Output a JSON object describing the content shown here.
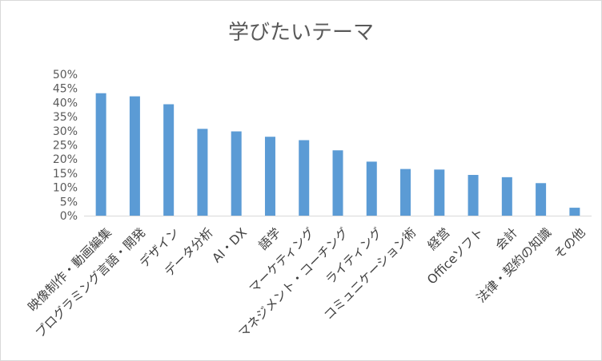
{
  "chart_data": {
    "type": "bar",
    "title": "学びたいテーマ",
    "xlabel": "",
    "ylabel": "",
    "ylim": [
      0,
      0.5
    ],
    "ytick_step": 0.05,
    "ytick_labels": [
      "0%",
      "5%",
      "10%",
      "15%",
      "20%",
      "25%",
      "30%",
      "35%",
      "40%",
      "45%",
      "50%"
    ],
    "grid": false,
    "legend": "none",
    "bar_color": "#5b9bd5",
    "categories": [
      "映像制作・動画編集",
      "プログラミング言語・開発",
      "デザイン",
      "データ分析",
      "AI・DX",
      "語学",
      "マーケティング",
      "マネジメント・コーチング",
      "ライティング",
      "コミュニケーション術",
      "経営",
      "Officeソフト",
      "会計",
      "法律・契約の知識",
      "その他"
    ],
    "values": [
      0.433,
      0.422,
      0.394,
      0.307,
      0.298,
      0.279,
      0.267,
      0.231,
      0.191,
      0.165,
      0.163,
      0.144,
      0.136,
      0.115,
      0.028
    ]
  }
}
